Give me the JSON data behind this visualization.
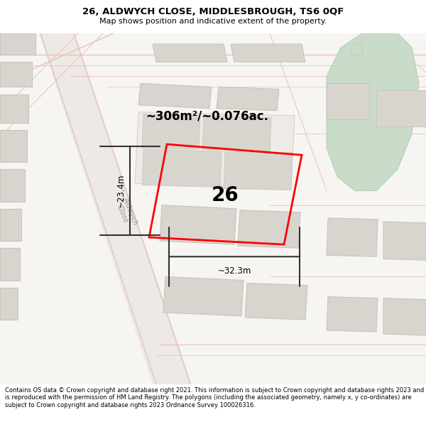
{
  "title_line1": "26, ALDWYCH CLOSE, MIDDLESBROUGH, TS6 0QF",
  "title_line2": "Map shows position and indicative extent of the property.",
  "footer_text": "Contains OS data © Crown copyright and database right 2021. This information is subject to Crown copyright and database rights 2023 and is reproduced with the permission of HM Land Registry. The polygons (including the associated geometry, namely x, y co-ordinates) are subject to Crown copyright and database rights 2023 Ordnance Survey 100026316.",
  "area_text": "~306m²/~0.076ac.",
  "width_label": "~32.3m",
  "height_label": "~23.4m",
  "property_number": "26",
  "map_bg": "#f7f5f2",
  "road_fill": "#ede9e4",
  "road_line_color": "#e8c0c0",
  "building_color": "#d8d5cf",
  "building_edge": "#c8c5bf",
  "green_color": "#c9dcc9",
  "green_edge": "#b8ccb8",
  "property_color": "#ff0000",
  "dim_color": "#333333",
  "road_label_color": "#999999",
  "title_fontsize": 9.5,
  "subtitle_fontsize": 8.0,
  "footer_fontsize": 6.0
}
